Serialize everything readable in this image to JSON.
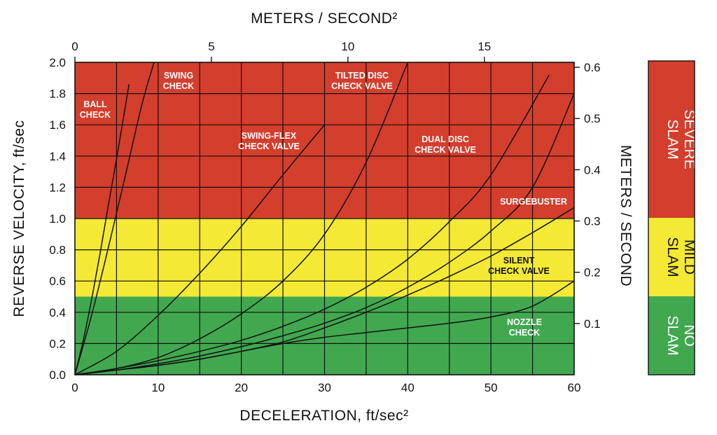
{
  "chart_data": {
    "type": "line",
    "xlabel": "DECELERATION, ft/sec²",
    "ylabel": "REVERSE VELOCITY, ft/sec",
    "x2label": "METERS / SECOND²",
    "y2label": "METERS / SECOND",
    "xlim": [
      0,
      60
    ],
    "ylim": [
      0,
      2.0
    ],
    "x_ticks": [
      "0",
      "10",
      "20",
      "30",
      "40",
      "50",
      "60"
    ],
    "y_ticks": [
      "0.0",
      "0.2",
      "0.4",
      "0.6",
      "0.8",
      "1.0",
      "1.2",
      "1.4",
      "1.6",
      "1.8",
      "2.0"
    ],
    "x2_ticks": [
      "0",
      "5",
      "10",
      "15"
    ],
    "y2_ticks": [
      "0.1",
      "0.2",
      "0.3",
      "0.4",
      "0.5",
      "0.6"
    ],
    "grid": true,
    "zones": [
      {
        "name": "NO SLAM",
        "lines": [
          "NO",
          "SLAM"
        ],
        "from": 0,
        "to": 0.5,
        "color": "#41a84f"
      },
      {
        "name": "MILD SLAM",
        "lines": [
          "MILD",
          "SLAM"
        ],
        "from": 0.5,
        "to": 1.0,
        "color": "#f4e935"
      },
      {
        "name": "SEVERE SLAM",
        "lines": [
          "SEVERE",
          "SLAM"
        ],
        "from": 1.0,
        "to": 2.0,
        "color": "#d43e2d"
      }
    ],
    "series": [
      {
        "name": "BALL CHECK",
        "label_lines": [
          "BALL",
          "CHECK"
        ],
        "x": [
          0,
          1,
          2,
          3,
          4,
          5,
          6.5
        ],
        "y": [
          0,
          0.22,
          0.48,
          0.77,
          1.08,
          1.38,
          1.86
        ]
      },
      {
        "name": "SWING CHECK",
        "label_lines": [
          "SWING",
          "CHECK"
        ],
        "x": [
          0,
          2,
          4,
          6,
          8,
          9.5
        ],
        "y": [
          0,
          0.38,
          0.81,
          1.26,
          1.72,
          2.0
        ]
      },
      {
        "name": "SWING-FLEX CHECK VALVE",
        "label_lines": [
          "SWING-FLEX",
          "CHECK VALVE"
        ],
        "x": [
          0,
          5,
          10,
          15,
          20,
          25,
          30
        ],
        "y": [
          0,
          0.15,
          0.38,
          0.65,
          0.95,
          1.28,
          1.6
        ]
      },
      {
        "name": "TILTED DISC CHECK VALVE",
        "label_lines": [
          "TILTED DISC",
          "CHECK VALVE"
        ],
        "x": [
          0,
          5,
          10,
          15,
          20,
          25,
          30,
          35,
          40
        ],
        "y": [
          0,
          0.04,
          0.11,
          0.23,
          0.39,
          0.6,
          0.9,
          1.36,
          2.0
        ]
      },
      {
        "name": "DUAL DISC CHECK VALVE",
        "label_lines": [
          "DUAL DISC",
          "CHECK VALVE"
        ],
        "x": [
          0,
          5,
          10,
          15,
          20,
          25,
          30,
          35,
          40,
          45,
          50,
          57
        ],
        "y": [
          0,
          0.04,
          0.09,
          0.15,
          0.22,
          0.31,
          0.42,
          0.56,
          0.74,
          0.98,
          1.28,
          1.92
        ]
      },
      {
        "name": "SURGEBUSTER",
        "label_lines": [
          "SURGEBUSTER"
        ],
        "x": [
          0,
          5,
          10,
          15,
          20,
          25,
          30,
          35,
          40,
          45,
          50,
          55,
          60
        ],
        "y": [
          0,
          0.03,
          0.07,
          0.12,
          0.18,
          0.25,
          0.33,
          0.43,
          0.56,
          0.72,
          0.92,
          1.2,
          1.8
        ]
      },
      {
        "name": "SILENT CHECK VALVE",
        "label_lines": [
          "SILENT",
          "CHECK VALVE"
        ],
        "x": [
          0,
          5,
          10,
          15,
          20,
          25,
          30,
          35,
          40,
          45,
          50,
          55,
          60
        ],
        "y": [
          0,
          0.03,
          0.06,
          0.1,
          0.15,
          0.21,
          0.3,
          0.4,
          0.51,
          0.63,
          0.76,
          0.91,
          1.07
        ]
      },
      {
        "name": "NOZZLE CHECK",
        "label_lines": [
          "NOZZLE",
          "CHECK"
        ],
        "x": [
          0,
          5,
          10,
          15,
          20,
          25,
          30,
          35,
          40,
          45,
          50,
          55,
          60
        ],
        "y": [
          0,
          0.03,
          0.06,
          0.1,
          0.15,
          0.2,
          0.24,
          0.27,
          0.3,
          0.33,
          0.37,
          0.44,
          0.6
        ]
      }
    ]
  }
}
